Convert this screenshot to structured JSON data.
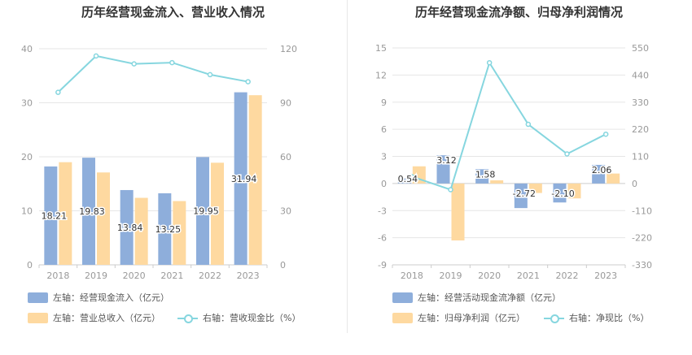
{
  "colors": {
    "bar1": "#8eaedb",
    "bar2": "#fed9a0",
    "line": "#86d6df",
    "axis": "#999999",
    "grid": "#e6e6e6",
    "label": "#333333"
  },
  "chart_data": [
    {
      "type": "bar",
      "title": "历年经营现金流入、营业收入情况",
      "categories": [
        "2018",
        "2019",
        "2020",
        "2021",
        "2022",
        "2023"
      ],
      "ylim": [
        0,
        40
      ],
      "yticks": [
        0,
        10,
        20,
        30,
        40
      ],
      "y2lim": [
        0,
        120
      ],
      "y2ticks": [
        0,
        30,
        60,
        90,
        120
      ],
      "series": [
        {
          "name": "左轴：经营现金流入（亿元）",
          "kind": "bar",
          "axis": "left",
          "values": [
            18.21,
            19.83,
            13.84,
            13.25,
            19.95,
            31.94
          ],
          "show_labels": true
        },
        {
          "name": "左轴：营业总收入（亿元）",
          "kind": "bar",
          "axis": "left",
          "values": [
            19.0,
            17.1,
            12.4,
            11.8,
            18.9,
            31.4
          ],
          "show_labels": false
        },
        {
          "name": "右轴：营收现金比（%）",
          "kind": "line",
          "axis": "right",
          "values": [
            95.8,
            116.0,
            111.6,
            112.3,
            105.6,
            101.7
          ]
        }
      ]
    },
    {
      "type": "bar",
      "title": "历年经营现金流净额、归母净利润情况",
      "categories": [
        "2018",
        "2019",
        "2020",
        "2021",
        "2022",
        "2023"
      ],
      "ylim": [
        -9,
        15
      ],
      "yticks": [
        -9,
        -6,
        -3,
        0,
        3,
        6,
        9,
        12,
        15
      ],
      "y2lim": [
        -330,
        550
      ],
      "y2ticks": [
        -330,
        -220,
        -110,
        0,
        110,
        220,
        330,
        440,
        550
      ],
      "series": [
        {
          "name": "左轴：经营活动现金流净额（亿元）",
          "kind": "bar",
          "axis": "left",
          "values": [
            0.54,
            3.12,
            1.58,
            -2.72,
            -2.1,
            2.06
          ],
          "show_labels": true
        },
        {
          "name": "左轴：归母净利润（亿元）",
          "kind": "bar",
          "axis": "left",
          "values": [
            1.9,
            -6.3,
            0.35,
            -1.05,
            -1.65,
            1.1
          ],
          "show_labels": false
        },
        {
          "name": "右轴：净现比（%）",
          "kind": "line",
          "axis": "right",
          "values": [
            28,
            -25,
            490,
            240,
            120,
            200
          ]
        }
      ]
    }
  ]
}
